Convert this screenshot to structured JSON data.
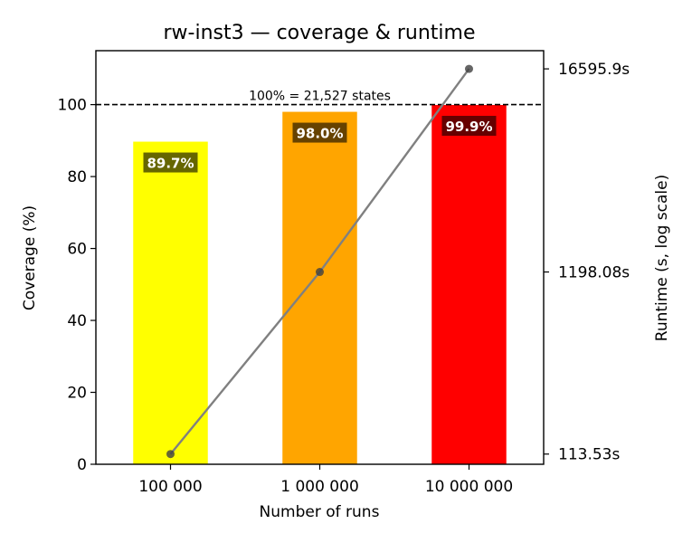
{
  "chart_data": {
    "type": "bar",
    "title": "rw-inst3 — coverage & runtime",
    "xlabel": "Number of runs",
    "ylabel": "Coverage (%)",
    "y2label": "Runtime (s, log scale)",
    "categories": [
      "100 000",
      "1 000 000",
      "10 000 000"
    ],
    "series": [
      {
        "kind": "bar",
        "values": [
          89.7,
          98.0,
          99.9
        ],
        "labels": [
          "89.7%",
          "98.0%",
          "99.9%"
        ],
        "colors": [
          "#ffff00",
          "#ffa500",
          "#ff0000"
        ]
      },
      {
        "kind": "line",
        "axis": "right",
        "values": [
          113.53,
          1198.08,
          16595.9
        ],
        "color": "#808080"
      }
    ],
    "ylim": [
      0,
      115
    ],
    "yticks": [
      0,
      20,
      40,
      60,
      80,
      100
    ],
    "y2_scale": "log",
    "y2lim": [
      99.5,
      21000
    ],
    "y2ticks": [
      113.53,
      1198.08,
      16595.9
    ],
    "y2ticklabels": [
      "113.53s",
      "1198.08s",
      "16595.9s"
    ],
    "reference_line": {
      "y": 100,
      "style": "dashed",
      "color": "#000000",
      "label": "100% = 21,527 states"
    },
    "grid": false,
    "legend": "none"
  }
}
